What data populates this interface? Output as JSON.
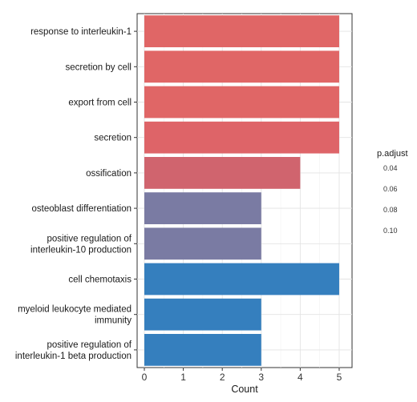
{
  "chart_data": {
    "type": "bar",
    "orientation": "horizontal",
    "categories": [
      [
        "response to interleukin-1"
      ],
      [
        "secretion by cell"
      ],
      [
        "export from cell"
      ],
      [
        "secretion"
      ],
      [
        "ossification"
      ],
      [
        "osteoblast differentiation"
      ],
      [
        "positive regulation of",
        "interleukin-10 production"
      ],
      [
        "cell chemotaxis"
      ],
      [
        "myeloid leukocyte mediated",
        "immunity"
      ],
      [
        "positive regulation of",
        "interleukin-1 beta production"
      ]
    ],
    "values": [
      5,
      5,
      5,
      5,
      4,
      3,
      3,
      5,
      3,
      3
    ],
    "bar_colors": [
      "#E06666",
      "#E06666",
      "#E06666",
      "#DE6468",
      "#D0646E",
      "#7A7BA3",
      "#7A7BA3",
      "#357FBE",
      "#357FBE",
      "#357FBE"
    ],
    "xlabel": "Count",
    "ylabel": "",
    "xlim": [
      0,
      5.25
    ],
    "xticks": [
      "0",
      "1",
      "2",
      "3",
      "4",
      "5"
    ],
    "grid": true,
    "legend": {
      "title": "p.adjust",
      "ticks": [
        "0.04",
        "0.06",
        "0.08",
        "0.10"
      ],
      "placement": "right"
    }
  }
}
